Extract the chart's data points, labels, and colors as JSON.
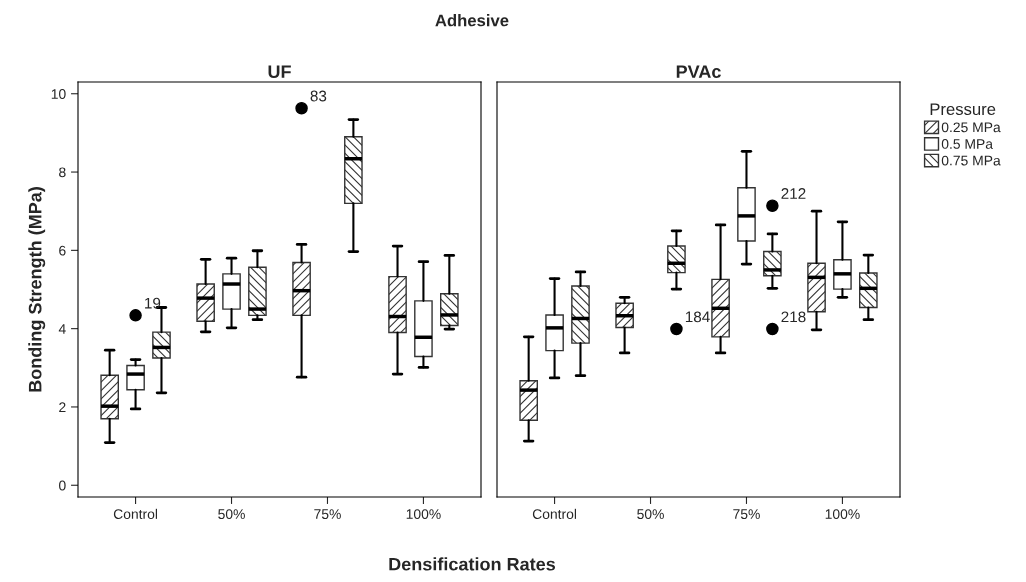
{
  "chart_data": [
    {
      "type": "box",
      "title": "UF",
      "annotations": [
        "Adhesive",
        "83",
        "19"
      ],
      "xlabel": "Densification Rates",
      "ylabel": "Bonding Strength (MPa)",
      "categories": [
        "Control",
        "50%",
        "75%",
        "100%"
      ],
      "ylim": [
        -0.3,
        10.3
      ],
      "yticks": [
        0,
        2,
        4,
        6,
        8,
        10
      ],
      "grid": false,
      "legend": false,
      "series": [
        {
          "color": "#333333",
          "boxes": [
            {
              "low": 1.09,
              "q1": 1.7,
              "median": 2.02,
              "q3": 2.81,
              "high": 3.45
            },
            {
              "low": 3.92,
              "q1": 4.19,
              "median": 4.78,
              "q3": 5.14,
              "high": 5.77
            },
            {
              "low": 2.76,
              "q1": 4.34,
              "median": 4.97,
              "q3": 5.69,
              "high": 6.15,
              "outliers": [
                9.63
              ]
            },
            {
              "low": 2.84,
              "q1": 3.9,
              "median": 4.31,
              "q3": 5.33,
              "high": 6.11
            }
          ]
        },
        {
          "color": "#333333",
          "boxes": [
            {
              "low": 1.95,
              "q1": 2.44,
              "median": 2.84,
              "q3": 3.06,
              "high": 3.21,
              "outliers": [
                4.34
              ]
            },
            {
              "low": 4.02,
              "q1": 4.5,
              "median": 5.14,
              "q3": 5.4,
              "high": 5.8
            },
            null,
            {
              "low": 3.01,
              "q1": 3.29,
              "median": 3.78,
              "q3": 4.71,
              "high": 5.71
            }
          ]
        },
        {
          "color": "#333333",
          "boxes": [
            {
              "low": 2.36,
              "q1": 3.25,
              "median": 3.52,
              "q3": 3.91,
              "high": 4.54
            },
            {
              "low": 4.23,
              "q1": 4.34,
              "median": 4.5,
              "q3": 5.57,
              "high": 5.99
            },
            {
              "low": 5.97,
              "q1": 7.2,
              "median": 8.34,
              "q3": 8.9,
              "high": 9.34
            },
            {
              "low": 3.99,
              "q1": 4.08,
              "median": 4.35,
              "q3": 4.89,
              "high": 5.87
            }
          ]
        }
      ]
    },
    {
      "type": "box",
      "title": "PVAc",
      "annotations": [
        "184",
        "212",
        "218"
      ],
      "categories": [
        "Control",
        "50%",
        "75%",
        "100%"
      ],
      "ylim": [
        -0.3,
        10.3
      ],
      "tick_labels": "x",
      "grid": false,
      "legend": "right",
      "legend_title": "Pressure",
      "series": [
        {
          "name": "0.25 MPa",
          "color": "#333333",
          "boxes": [
            {
              "low": 1.13,
              "q1": 1.66,
              "median": 2.43,
              "q3": 2.67,
              "high": 3.79
            },
            {
              "low": 3.38,
              "q1": 4.03,
              "median": 4.33,
              "q3": 4.65,
              "high": 4.8
            },
            {
              "low": 3.38,
              "q1": 3.79,
              "median": 4.52,
              "q3": 5.26,
              "high": 6.65
            },
            {
              "low": 3.97,
              "q1": 4.43,
              "median": 5.31,
              "q3": 5.67,
              "high": 7.0
            }
          ]
        },
        {
          "name": "0.5 MPa",
          "color": "#333333",
          "boxes": [
            {
              "low": 2.74,
              "q1": 3.44,
              "median": 4.02,
              "q3": 4.35,
              "high": 5.28
            },
            null,
            {
              "low": 5.65,
              "q1": 6.24,
              "median": 6.88,
              "q3": 7.6,
              "high": 8.53
            },
            {
              "low": 4.8,
              "q1": 5.01,
              "median": 5.4,
              "q3": 5.76,
              "high": 6.73
            }
          ]
        },
        {
          "name": "0.75 MPa",
          "color": "#333333",
          "boxes": [
            {
              "low": 2.8,
              "q1": 3.63,
              "median": 4.26,
              "q3": 5.09,
              "high": 5.45
            },
            {
              "low": 5.01,
              "q1": 5.43,
              "median": 5.67,
              "q3": 6.11,
              "high": 6.5,
              "outliers": [
                3.99
              ]
            },
            {
              "low": 5.03,
              "q1": 5.35,
              "median": 5.5,
              "q3": 5.97,
              "high": 6.42,
              "outliers": [
                7.14,
                3.99
              ]
            },
            {
              "low": 4.23,
              "q1": 4.54,
              "median": 5.03,
              "q3": 5.42,
              "high": 5.88
            }
          ]
        }
      ]
    }
  ]
}
